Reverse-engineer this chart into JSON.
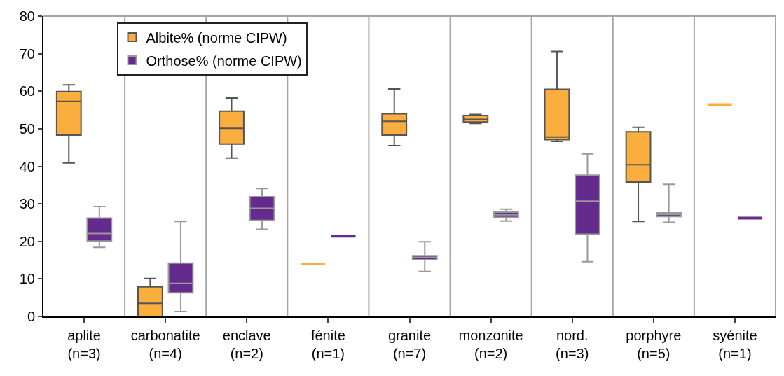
{
  "chart_data": {
    "type": "box",
    "categories": [
      "aplite\n(n=3)",
      "carbonatite\n(n=4)",
      "enclave\n(n=2)",
      "fénite\n(n=1)",
      "granite\n(n=7)",
      "monzonite\n(n=2)",
      "nord.\n(n=3)",
      "porphyre\n(n=5)",
      "syénite\n(n=1)"
    ],
    "ylim": [
      0,
      80
    ],
    "yticks": [
      0,
      10,
      20,
      30,
      40,
      50,
      60,
      70,
      80
    ],
    "grid": "x",
    "legend": "top left",
    "series": [
      {
        "name": "Albite% (norme CIPW)",
        "color": "#f9ae3e",
        "boxes": [
          {
            "low": 40.9,
            "q1": 48.3,
            "median": 57.3,
            "q3": 59.9,
            "high": 61.7
          },
          {
            "low": 0,
            "q1": 0,
            "median": 3.5,
            "q3": 7.9,
            "high": 10.1
          },
          {
            "low": 42.2,
            "q1": 45.9,
            "median": 50.1,
            "q3": 54.7,
            "high": 58.2
          },
          {
            "low": 14,
            "q1": 14,
            "median": 14,
            "q3": 14,
            "high": 14
          },
          {
            "low": 45.5,
            "q1": 48.3,
            "median": 52,
            "q3": 54,
            "high": 60.6
          },
          {
            "low": 51.4,
            "q1": 51.8,
            "median": 52.5,
            "q3": 53.5,
            "high": 53.8
          },
          {
            "low": 46.6,
            "q1": 47.1,
            "median": 47.8,
            "q3": 60.5,
            "high": 70.6
          },
          {
            "low": 25.3,
            "q1": 35.8,
            "median": 40.4,
            "q3": 49.2,
            "high": 50.4
          },
          {
            "low": 56.4,
            "q1": 56.4,
            "median": 56.4,
            "q3": 56.4,
            "high": 56.4
          }
        ]
      },
      {
        "name": "Orthose% (norme CIPW)",
        "color": "#652a8d",
        "boxes": [
          {
            "low": 18.4,
            "q1": 20.1,
            "median": 22.1,
            "q3": 26.2,
            "high": 29.3
          },
          {
            "low": 1.3,
            "q1": 6.3,
            "median": 8.8,
            "q3": 14.2,
            "high": 25.3
          },
          {
            "low": 23.2,
            "q1": 25.6,
            "median": 28.8,
            "q3": 31.9,
            "high": 34.1
          },
          {
            "low": 21.4,
            "q1": 21.4,
            "median": 21.4,
            "q3": 21.4,
            "high": 21.4
          },
          {
            "low": 12,
            "q1": 15.1,
            "median": 15.7,
            "q3": 16.2,
            "high": 19.9
          },
          {
            "low": 25.4,
            "q1": 26.4,
            "median": 27.1,
            "q3": 27.8,
            "high": 28.6
          },
          {
            "low": 14.6,
            "q1": 21.9,
            "median": 30.7,
            "q3": 37.6,
            "high": 43.3
          },
          {
            "low": 25.1,
            "q1": 26.6,
            "median": 27.2,
            "q3": 27.6,
            "high": 35.2
          },
          {
            "low": 26.2,
            "q1": 26.2,
            "median": 26.2,
            "q3": 26.2,
            "high": 26.2
          }
        ]
      }
    ]
  }
}
